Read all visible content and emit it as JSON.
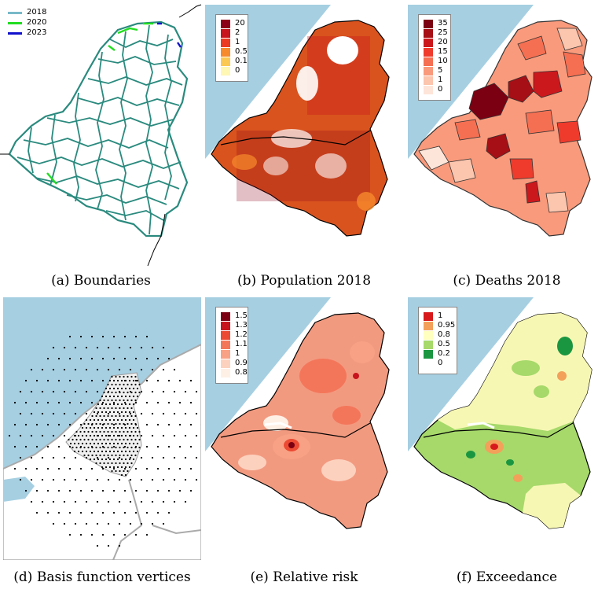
{
  "panels": [
    {
      "id": "a",
      "caption": "(a) Boundaries"
    },
    {
      "id": "b",
      "caption": "(b) Population 2018"
    },
    {
      "id": "c",
      "caption": "(c) Deaths 2018"
    },
    {
      "id": "d",
      "caption": "(d) Basis function vertices"
    },
    {
      "id": "e",
      "caption": "(e) Relative risk"
    },
    {
      "id": "f",
      "caption": "(f) Exceedance"
    }
  ],
  "boundaries_legend": [
    {
      "label": "2018",
      "color": "#79b9c9"
    },
    {
      "label": "2020",
      "color": "#22dd22"
    },
    {
      "label": "2023",
      "color": "#1111cc"
    }
  ],
  "population_legend": [
    {
      "label": "20",
      "color": "#8b0016"
    },
    {
      "label": "2",
      "color": "#c8141c"
    },
    {
      "label": "1",
      "color": "#ec3a22"
    },
    {
      "label": "0.5",
      "color": "#f68a2c"
    },
    {
      "label": "0.1",
      "color": "#fbc953"
    },
    {
      "label": "0",
      "color": "#fff7b4"
    }
  ],
  "deaths_legend": [
    {
      "label": "35",
      "color": "#7a0012"
    },
    {
      "label": "25",
      "color": "#a50f15"
    },
    {
      "label": "20",
      "color": "#cb181d"
    },
    {
      "label": "15",
      "color": "#ef3b2c"
    },
    {
      "label": "10",
      "color": "#f56f52"
    },
    {
      "label": "5",
      "color": "#f99a7c"
    },
    {
      "label": "1",
      "color": "#fcc5ae"
    },
    {
      "label": "0",
      "color": "#fee5d9"
    }
  ],
  "risk_legend": [
    {
      "label": "1.5",
      "color": "#7a0012"
    },
    {
      "label": "1.3",
      "color": "#c8141c"
    },
    {
      "label": "1.2",
      "color": "#ec4a33"
    },
    {
      "label": "1.1",
      "color": "#f4765a"
    },
    {
      "label": "1",
      "color": "#f8a184"
    },
    {
      "label": "0.9",
      "color": "#fcd2bf"
    },
    {
      "label": "0.8",
      "color": "#fff0e6"
    }
  ],
  "exceedance_legend": [
    {
      "label": "1",
      "color": "#d7191c"
    },
    {
      "label": "0.95",
      "color": "#f3a05a"
    },
    {
      "label": "0.8",
      "color": "#ffffbf"
    },
    {
      "label": "0.5",
      "color": "#a6d96a"
    },
    {
      "label": "0.2",
      "color": "#1a9641"
    },
    {
      "label": "0",
      "color": "#ffffff"
    }
  ],
  "colors": {
    "sea": "#a6cfe2",
    "land_outline": "#000000",
    "boundary_line": "#2a8a7e",
    "risk_base": "#f29a80",
    "exceedance_base": "#a6d96a",
    "exceedance_north": "#f7f7b4",
    "population_base": "#d9531e"
  }
}
